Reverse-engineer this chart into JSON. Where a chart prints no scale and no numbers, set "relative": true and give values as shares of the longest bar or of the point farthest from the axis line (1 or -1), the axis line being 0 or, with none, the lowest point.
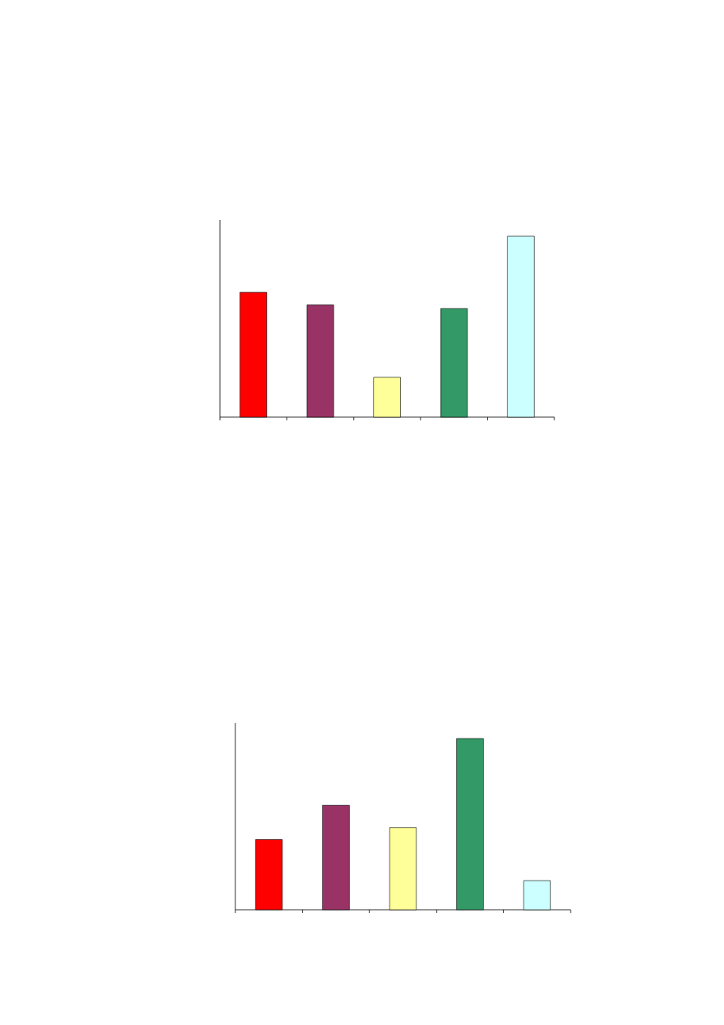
{
  "chart_data": [
    {
      "type": "bar",
      "relative": true,
      "categories": [
        null,
        null,
        null,
        null,
        null
      ],
      "values": [
        0.69,
        0.62,
        0.22,
        0.6,
        1
      ],
      "colors": [
        "#ff0000",
        "#993366",
        "#ffff99",
        "#339966",
        "#ccffff"
      ],
      "tick_labels": false
    },
    {
      "type": "bar",
      "relative": true,
      "categories": [
        null,
        null,
        null,
        null,
        null
      ],
      "values": [
        0.41,
        0.61,
        0.48,
        1,
        0.17
      ],
      "colors": [
        "#ff0000",
        "#993366",
        "#ffff99",
        "#339966",
        "#ccffff"
      ],
      "tick_labels": false
    }
  ]
}
